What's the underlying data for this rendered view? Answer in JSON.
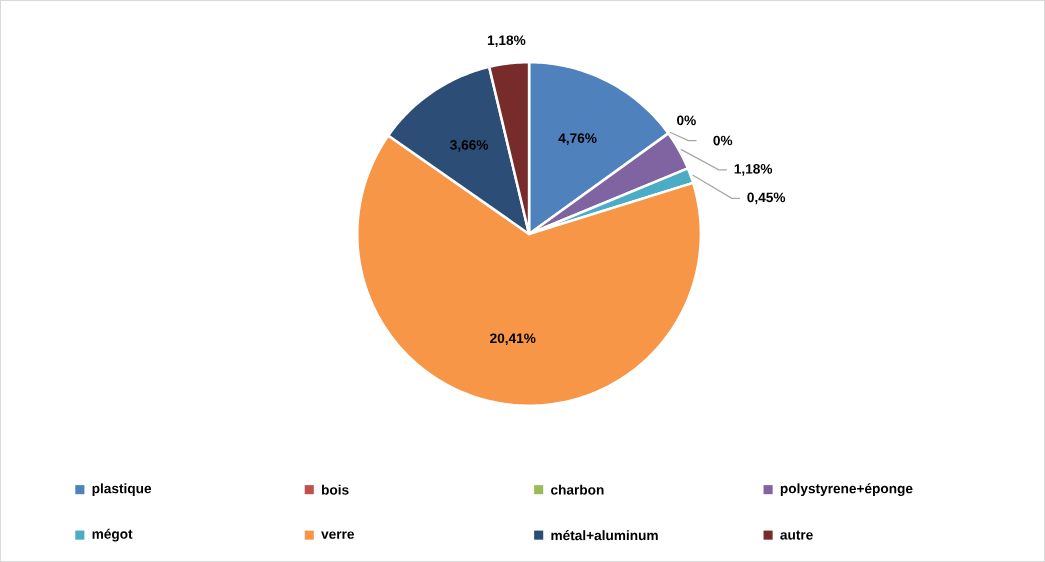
{
  "chart_data": {
    "type": "pie",
    "categories": [
      "plastique",
      "bois",
      "charbon",
      "polystyrene+éponge",
      "mégot",
      "verre",
      "métal+aluminum",
      "autre"
    ],
    "values": [
      4.76,
      0,
      0,
      1.18,
      0.45,
      20.41,
      3.66,
      1.18
    ],
    "value_labels": [
      "4,76%",
      "0%",
      "0%",
      "1,18%",
      "0,45%",
      "20,41%",
      "3,66%",
      "1,18%"
    ],
    "colors": [
      "#4f81bd",
      "#c0504d",
      "#9bbb59",
      "#8064a2",
      "#4bacc6",
      "#f79646",
      "#2c4d75",
      "#772c2a"
    ],
    "legend": "bottom"
  }
}
